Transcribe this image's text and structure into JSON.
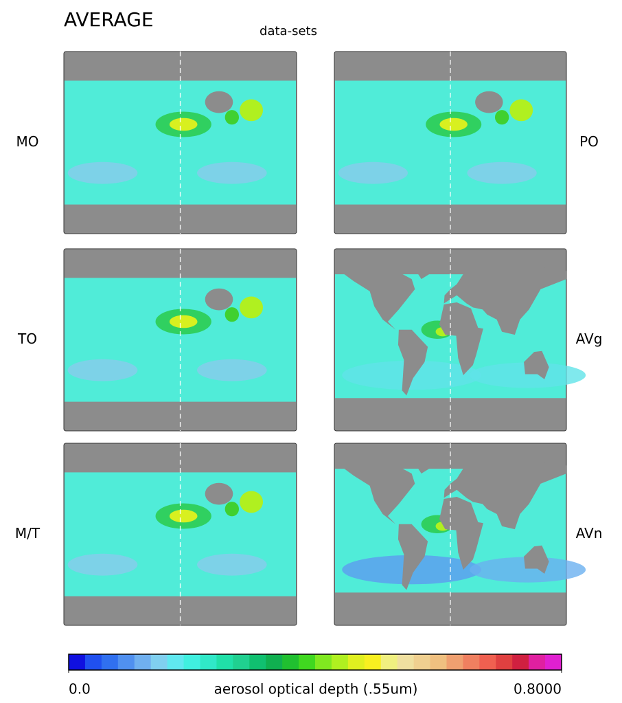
{
  "title": "AVERAGE",
  "subtitle": "data-sets",
  "panels": [
    {
      "label": "MO",
      "kind": "all"
    },
    {
      "label": "PO",
      "kind": "all"
    },
    {
      "label": "TO",
      "kind": "all"
    },
    {
      "label": "AVg",
      "kind": "ocean"
    },
    {
      "label": "M/T",
      "kind": "all"
    },
    {
      "label": "AVn",
      "kind": "ocean"
    }
  ],
  "colorbar": {
    "label": "aerosol optical depth (.55um)",
    "range": [
      0,
      0.8
    ],
    "ticks": [
      {
        "value": 0,
        "label": "0.0"
      },
      {
        "value": 0.8,
        "label": "0.8000"
      }
    ],
    "colors": [
      "#1010e0",
      "#2050f0",
      "#3070f0",
      "#5090f0",
      "#70b0f0",
      "#80d0f0",
      "#60e8f0",
      "#40f0e0",
      "#30e8c8",
      "#20e0a8",
      "#20d090",
      "#10c070",
      "#10b050",
      "#20c030",
      "#40d820",
      "#80e820",
      "#b0f020",
      "#e0f020",
      "#f8f020",
      "#f0f080",
      "#f0e0a0",
      "#f0d090",
      "#f0c080",
      "#f0a070",
      "#f08060",
      "#f06050",
      "#e04040",
      "#d02040",
      "#e020a0",
      "#e020d0"
    ]
  }
}
